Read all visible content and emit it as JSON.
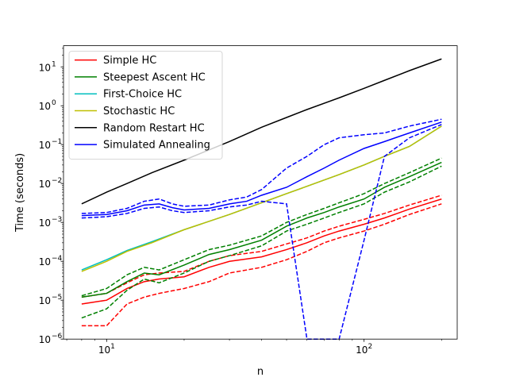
{
  "chart_data": {
    "type": "line",
    "title": "",
    "xlabel": "n",
    "ylabel": "Time (seconds)",
    "xscale": "log",
    "yscale": "log",
    "xlim": [
      6.8,
      230
    ],
    "ylim": [
      1e-06,
      35
    ],
    "grid": false,
    "legend_position": "top-left",
    "x_ticks": [
      {
        "value": 10,
        "base": "10",
        "exp": "1"
      },
      {
        "value": 100,
        "base": "10",
        "exp": "2"
      }
    ],
    "y_ticks": [
      {
        "value": 1e-06,
        "base": "10",
        "exp": "−6"
      },
      {
        "value": 1e-05,
        "base": "10",
        "exp": "−5"
      },
      {
        "value": 0.0001,
        "base": "10",
        "exp": "−4"
      },
      {
        "value": 0.001,
        "base": "10",
        "exp": "−3"
      },
      {
        "value": 0.01,
        "base": "10",
        "exp": "−2"
      },
      {
        "value": 0.1,
        "base": "10",
        "exp": "−1"
      },
      {
        "value": 1,
        "base": "10",
        "exp": "0"
      },
      {
        "value": 10,
        "base": "10",
        "exp": "1"
      }
    ],
    "series": [
      {
        "name": "Simple HC",
        "color": "#ff0000",
        "x": [
          8,
          10,
          12,
          14,
          16,
          20,
          25,
          30,
          40,
          50,
          60,
          70,
          80,
          100,
          120,
          150,
          200
        ],
        "values": [
          8e-06,
          1e-05,
          2e-05,
          3e-05,
          3.5e-05,
          4e-05,
          7e-05,
          0.0001,
          0.00013,
          0.0002,
          0.0003,
          0.00045,
          0.0006,
          0.0009,
          0.0013,
          0.0022,
          0.004
        ],
        "lower": [
          2.2e-06,
          2.2e-06,
          8e-06,
          1.2e-05,
          1.5e-05,
          2e-05,
          3e-05,
          5e-05,
          7e-05,
          0.00011,
          0.00018,
          0.0003,
          0.0004,
          0.0006,
          0.0009,
          0.0016,
          0.003
        ],
        "upper": [
          1.2e-05,
          1.5e-05,
          2.8e-05,
          4.5e-05,
          5e-05,
          5.5e-05,
          0.0001,
          0.00014,
          0.00018,
          0.00028,
          0.0004,
          0.0006,
          0.0008,
          0.0012,
          0.0017,
          0.0028,
          0.005
        ]
      },
      {
        "name": "Steepest Ascent HC",
        "color": "#008000",
        "x": [
          8,
          10,
          12,
          14,
          16,
          20,
          25,
          30,
          40,
          50,
          60,
          70,
          80,
          100,
          120,
          150,
          200
        ],
        "values": [
          1.2e-05,
          1.5e-05,
          3e-05,
          5e-05,
          4.5e-05,
          8e-05,
          0.00015,
          0.0002,
          0.00035,
          0.0008,
          0.0013,
          0.0018,
          0.0025,
          0.004,
          0.008,
          0.015,
          0.035
        ],
        "lower": [
          3.5e-06,
          6e-06,
          1.8e-05,
          3.5e-05,
          2.8e-05,
          5e-05,
          0.0001,
          0.00014,
          0.00025,
          0.0006,
          0.0009,
          0.0013,
          0.0018,
          0.003,
          0.006,
          0.011,
          0.028
        ],
        "upper": [
          1.3e-05,
          2e-05,
          4.5e-05,
          7e-05,
          6e-05,
          0.00011,
          0.0002,
          0.00026,
          0.00045,
          0.001,
          0.0016,
          0.0023,
          0.0032,
          0.0055,
          0.01,
          0.019,
          0.045
        ]
      },
      {
        "name": "First-Choice HC",
        "color": "#00bfbf",
        "x": [
          8,
          10,
          12,
          15,
          20,
          30,
          40,
          50,
          60,
          80,
          100,
          120,
          150,
          200
        ],
        "values": [
          6e-05,
          0.00011,
          0.00019,
          0.00032,
          0.00065,
          0.0016,
          0.0032,
          0.0055,
          0.0085,
          0.017,
          0.03,
          0.05,
          0.09,
          0.3
        ]
      },
      {
        "name": "Stochastic HC",
        "color": "#bfbf00",
        "x": [
          8,
          10,
          12,
          15,
          20,
          30,
          40,
          50,
          60,
          80,
          100,
          120,
          150,
          200
        ],
        "values": [
          5.5e-05,
          0.0001,
          0.00018,
          0.0003,
          0.00065,
          0.0016,
          0.0032,
          0.0055,
          0.0085,
          0.017,
          0.03,
          0.05,
          0.09,
          0.3
        ]
      },
      {
        "name": "Random Restart HC",
        "color": "#000000",
        "x": [
          8,
          10,
          12,
          15,
          20,
          30,
          40,
          50,
          60,
          80,
          100,
          120,
          150,
          200
        ],
        "values": [
          0.003,
          0.006,
          0.01,
          0.019,
          0.04,
          0.12,
          0.28,
          0.5,
          0.8,
          1.6,
          2.8,
          4.5,
          8,
          16
        ]
      },
      {
        "name": "Simulated Annealing",
        "color": "#0000ff",
        "x": [
          8,
          10,
          12,
          14,
          16,
          18,
          20,
          25,
          30,
          35,
          40,
          50,
          60,
          70,
          80,
          100,
          120,
          150,
          200
        ],
        "values": [
          0.0015,
          0.0016,
          0.002,
          0.0028,
          0.003,
          0.0024,
          0.0021,
          0.0023,
          0.003,
          0.0035,
          0.005,
          0.008,
          0.015,
          0.025,
          0.04,
          0.08,
          0.12,
          0.2,
          0.38
        ],
        "lower": [
          0.0013,
          0.0014,
          0.0017,
          0.0023,
          0.0025,
          0.002,
          0.0018,
          0.002,
          0.0025,
          0.0028,
          0.0035,
          0.003,
          1e-06,
          1e-06,
          1e-06,
          0.00035,
          0.05,
          0.15,
          0.33
        ],
        "upper": [
          0.0017,
          0.0018,
          0.0023,
          0.0035,
          0.004,
          0.003,
          0.0026,
          0.0028,
          0.0038,
          0.0045,
          0.007,
          0.025,
          0.05,
          0.1,
          0.15,
          0.18,
          0.2,
          0.3,
          0.45
        ]
      }
    ]
  }
}
